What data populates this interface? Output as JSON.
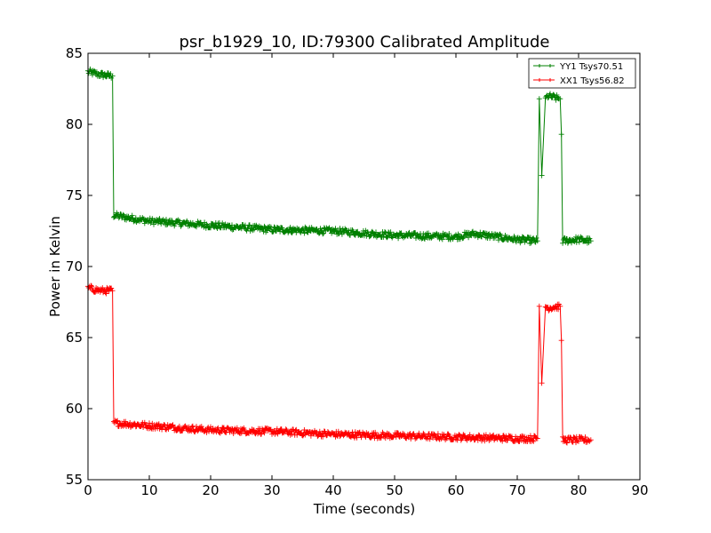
{
  "chart_data": {
    "type": "line",
    "title": "psr_b1929_10, ID:79300 Calibrated Amplitude",
    "xlabel": "Time (seconds)",
    "ylabel": "Power in Kelvin",
    "xlim": [
      0,
      90
    ],
    "ylim": [
      55,
      85
    ],
    "x_ticks": [
      0,
      10,
      20,
      30,
      40,
      50,
      60,
      70,
      80,
      90
    ],
    "y_ticks": [
      55,
      60,
      65,
      70,
      75,
      80,
      85
    ],
    "grid": false,
    "legend_position": "top-right",
    "marker": "+",
    "series": [
      {
        "name": "YY1 Tsys70.51",
        "color": "#008000",
        "x": [
          0,
          2,
          4,
          4.2,
          10,
          20,
          30,
          40,
          50,
          60,
          63,
          70,
          73.3,
          73.6,
          74,
          74.6,
          75,
          77,
          77.2,
          77.4,
          80,
          82
        ],
        "y": [
          83.7,
          83.5,
          83.4,
          73.6,
          73.2,
          72.9,
          72.6,
          72.5,
          72.2,
          72.1,
          72.3,
          71.9,
          71.8,
          81.8,
          76.4,
          81.8,
          82.0,
          81.8,
          79.3,
          71.8,
          71.9,
          71.8
        ],
        "noise": 0.22
      },
      {
        "name": "XX1 Tsys56.82",
        "color": "#ff0000",
        "x": [
          0,
          2,
          4,
          4.2,
          10,
          20,
          30,
          40,
          50,
          60,
          70,
          73.3,
          73.6,
          74,
          74.6,
          75,
          77,
          77.2,
          77.4,
          80,
          82
        ],
        "y": [
          68.5,
          68.3,
          68.3,
          59.0,
          58.8,
          58.5,
          58.4,
          58.2,
          58.1,
          58.0,
          57.9,
          57.9,
          67.2,
          61.8,
          67.2,
          67.1,
          67.2,
          64.8,
          57.8,
          57.8,
          57.8
        ],
        "noise": 0.22
      }
    ]
  }
}
